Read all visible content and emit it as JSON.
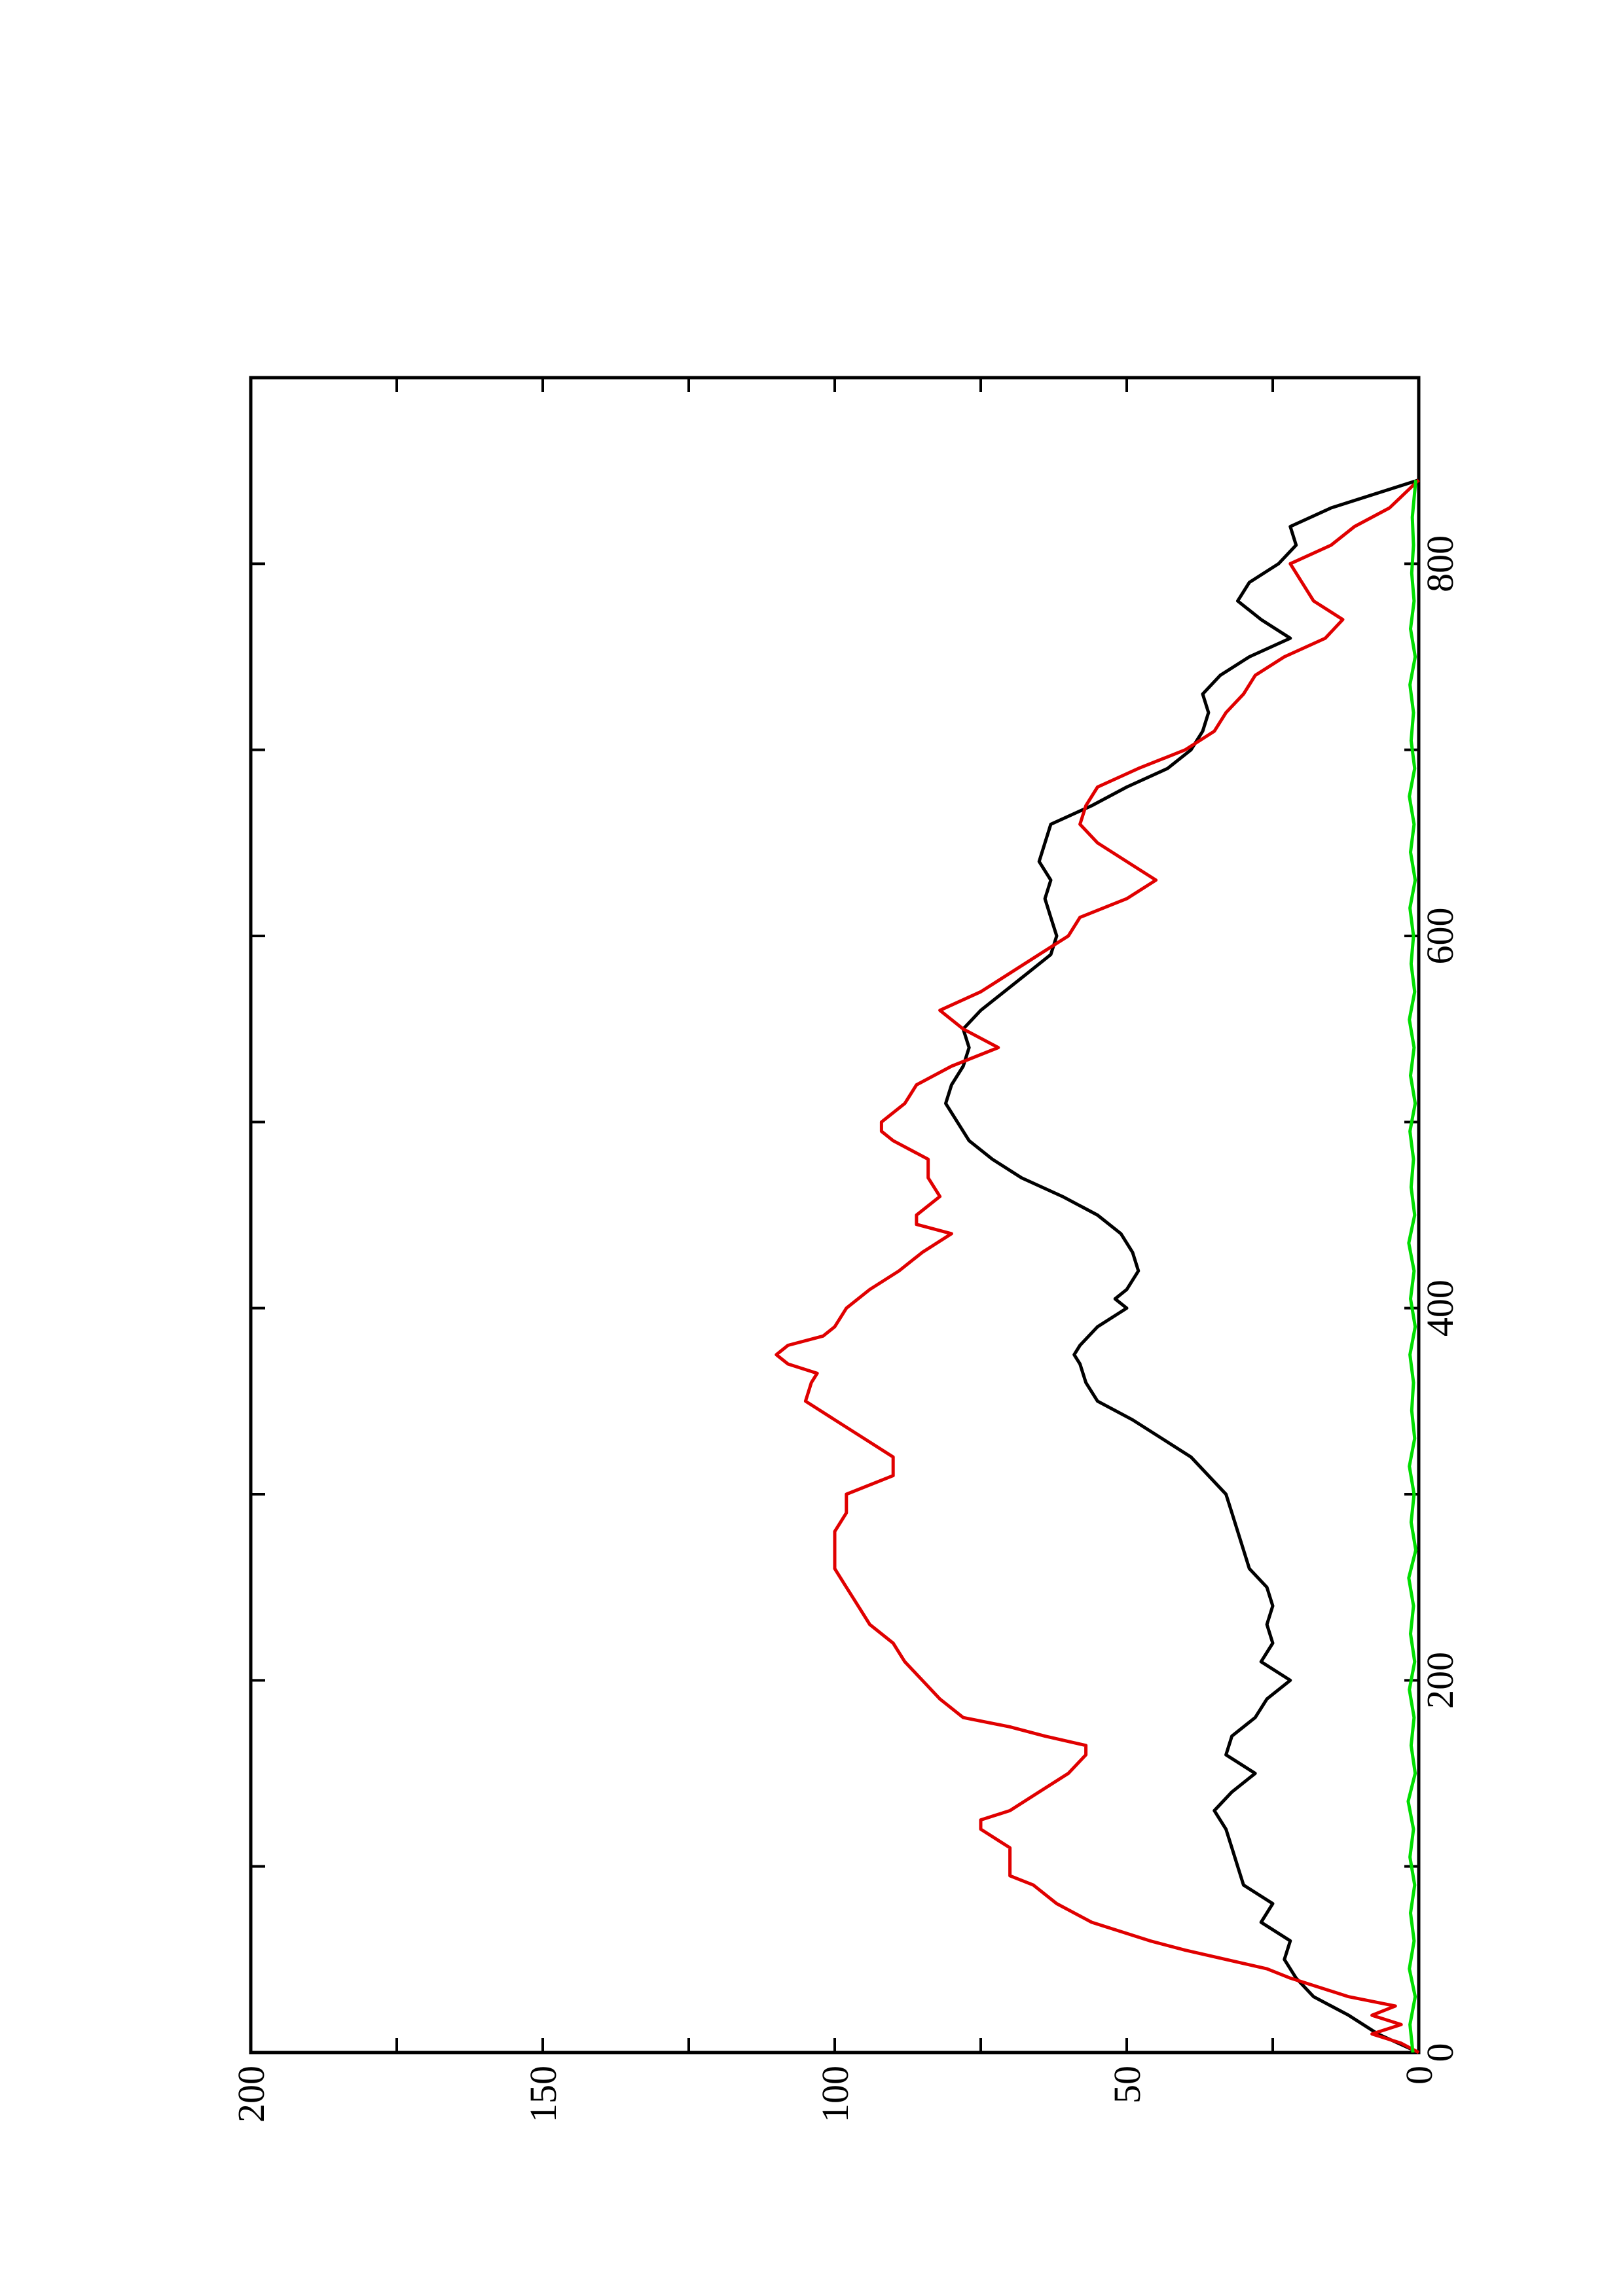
{
  "chart_data": {
    "type": "line",
    "title": "",
    "xlabel": "",
    "ylabel": "",
    "orientation": "rotated 90° counter-clockwise (page in landscape)",
    "xlim": [
      0,
      900
    ],
    "ylim": [
      0,
      200
    ],
    "x_ticks": [
      0,
      200,
      400,
      600,
      800
    ],
    "x_minor_ticks": [
      100,
      300,
      500,
      700
    ],
    "y_ticks": [
      0,
      50,
      100,
      150,
      200
    ],
    "y_minor_ticks": [
      25,
      75,
      125,
      175
    ],
    "x_tick_labels": [
      "0",
      "200",
      "400",
      "600",
      "800"
    ],
    "y_tick_labels": [
      "0",
      "50",
      "100",
      "150",
      "200"
    ],
    "grid": false,
    "legend": "none",
    "series": [
      {
        "color": "#000000",
        "x": [
          0,
          10,
          20,
          30,
          40,
          50,
          60,
          70,
          80,
          90,
          100,
          110,
          120,
          130,
          140,
          150,
          160,
          170,
          180,
          190,
          200,
          210,
          220,
          230,
          240,
          250,
          260,
          270,
          280,
          290,
          300,
          310,
          320,
          330,
          340,
          350,
          360,
          370,
          375,
          380,
          390,
          400,
          405,
          410,
          420,
          430,
          440,
          450,
          460,
          470,
          480,
          490,
          500,
          510,
          520,
          530,
          540,
          550,
          560,
          570,
          580,
          590,
          600,
          610,
          620,
          630,
          640,
          650,
          660,
          670,
          680,
          690,
          700,
          710,
          720,
          730,
          740,
          750,
          760,
          770,
          780,
          790,
          800,
          810,
          820,
          830,
          845
        ],
        "values": [
          0,
          7,
          12,
          18,
          21,
          23,
          22,
          27,
          25,
          30,
          31,
          32,
          33,
          35,
          32,
          28,
          33,
          32,
          28,
          26,
          22,
          27,
          25,
          26,
          25,
          26,
          29,
          30,
          31,
          32,
          33,
          36,
          39,
          44,
          49,
          55,
          57,
          58,
          59,
          58,
          55,
          50,
          52,
          50,
          48,
          49,
          51,
          55,
          61,
          68,
          73,
          77,
          79,
          81,
          80,
          78,
          77,
          78,
          75,
          71,
          67,
          63,
          62,
          63,
          64,
          63,
          65,
          64,
          63,
          56,
          50,
          43,
          39,
          37,
          36,
          37,
          34,
          29,
          22,
          27,
          31,
          29,
          24,
          21,
          22,
          15,
          0
        ]
      },
      {
        "color": "#e00000",
        "x": [
          0,
          5,
          10,
          15,
          20,
          25,
          30,
          40,
          45,
          50,
          55,
          60,
          70,
          80,
          90,
          95,
          100,
          110,
          120,
          125,
          130,
          140,
          150,
          160,
          165,
          170,
          175,
          180,
          190,
          200,
          210,
          220,
          230,
          240,
          250,
          260,
          270,
          280,
          290,
          300,
          310,
          320,
          330,
          340,
          350,
          360,
          365,
          370,
          375,
          380,
          385,
          390,
          400,
          410,
          420,
          430,
          440,
          445,
          450,
          460,
          470,
          480,
          490,
          495,
          500,
          510,
          520,
          530,
          540,
          550,
          560,
          570,
          580,
          590,
          600,
          610,
          620,
          630,
          640,
          650,
          660,
          670,
          680,
          690,
          700,
          710,
          720,
          730,
          740,
          750,
          760,
          770,
          780,
          790,
          800,
          810,
          820,
          830,
          845
        ],
        "values": [
          0,
          3,
          8,
          3,
          8,
          4,
          12,
          22,
          26,
          33,
          40,
          46,
          56,
          62,
          66,
          70,
          70,
          70,
          75,
          75,
          70,
          65,
          60,
          57,
          57,
          64,
          70,
          78,
          82,
          85,
          88,
          90,
          94,
          96,
          98,
          100,
          100,
          100,
          98,
          98,
          90,
          90,
          95,
          100,
          105,
          104,
          103,
          108,
          110,
          108,
          102,
          100,
          98,
          94,
          89,
          85,
          80,
          86,
          86,
          82,
          84,
          84,
          90,
          92,
          92,
          88,
          86,
          80,
          72,
          78,
          82,
          75,
          70,
          65,
          60,
          58,
          50,
          45,
          50,
          55,
          58,
          57,
          55,
          48,
          40,
          35,
          33,
          30,
          28,
          23,
          16,
          13,
          18,
          20,
          22,
          15,
          11,
          5,
          0
        ]
      },
      {
        "color": "#00dd00",
        "x": [
          0,
          15,
          30,
          45,
          60,
          75,
          90,
          105,
          120,
          135,
          150,
          165,
          180,
          195,
          210,
          225,
          240,
          255,
          270,
          285,
          300,
          315,
          330,
          345,
          360,
          375,
          390,
          405,
          420,
          435,
          450,
          465,
          480,
          495,
          510,
          525,
          540,
          555,
          570,
          585,
          600,
          615,
          630,
          645,
          660,
          675,
          690,
          705,
          720,
          735,
          750,
          765,
          780,
          795,
          810,
          825,
          845
        ],
        "values": [
          1.0,
          1.5,
          0.6,
          1.6,
          0.8,
          1.4,
          0.7,
          1.5,
          0.9,
          1.8,
          0.6,
          1.3,
          0.8,
          1.6,
          0.7,
          1.4,
          0.9,
          1.7,
          0.5,
          1.3,
          0.8,
          1.6,
          0.7,
          1.2,
          0.9,
          1.5,
          0.6,
          1.4,
          0.8,
          1.7,
          0.7,
          1.3,
          0.9,
          1.5,
          0.6,
          1.4,
          0.8,
          1.6,
          0.7,
          1.3,
          0.9,
          1.5,
          0.6,
          1.4,
          0.8,
          1.6,
          0.7,
          1.3,
          0.9,
          1.5,
          0.6,
          1.4,
          0.8,
          1.2,
          0.9,
          1.1,
          0.5
        ]
      }
    ]
  }
}
